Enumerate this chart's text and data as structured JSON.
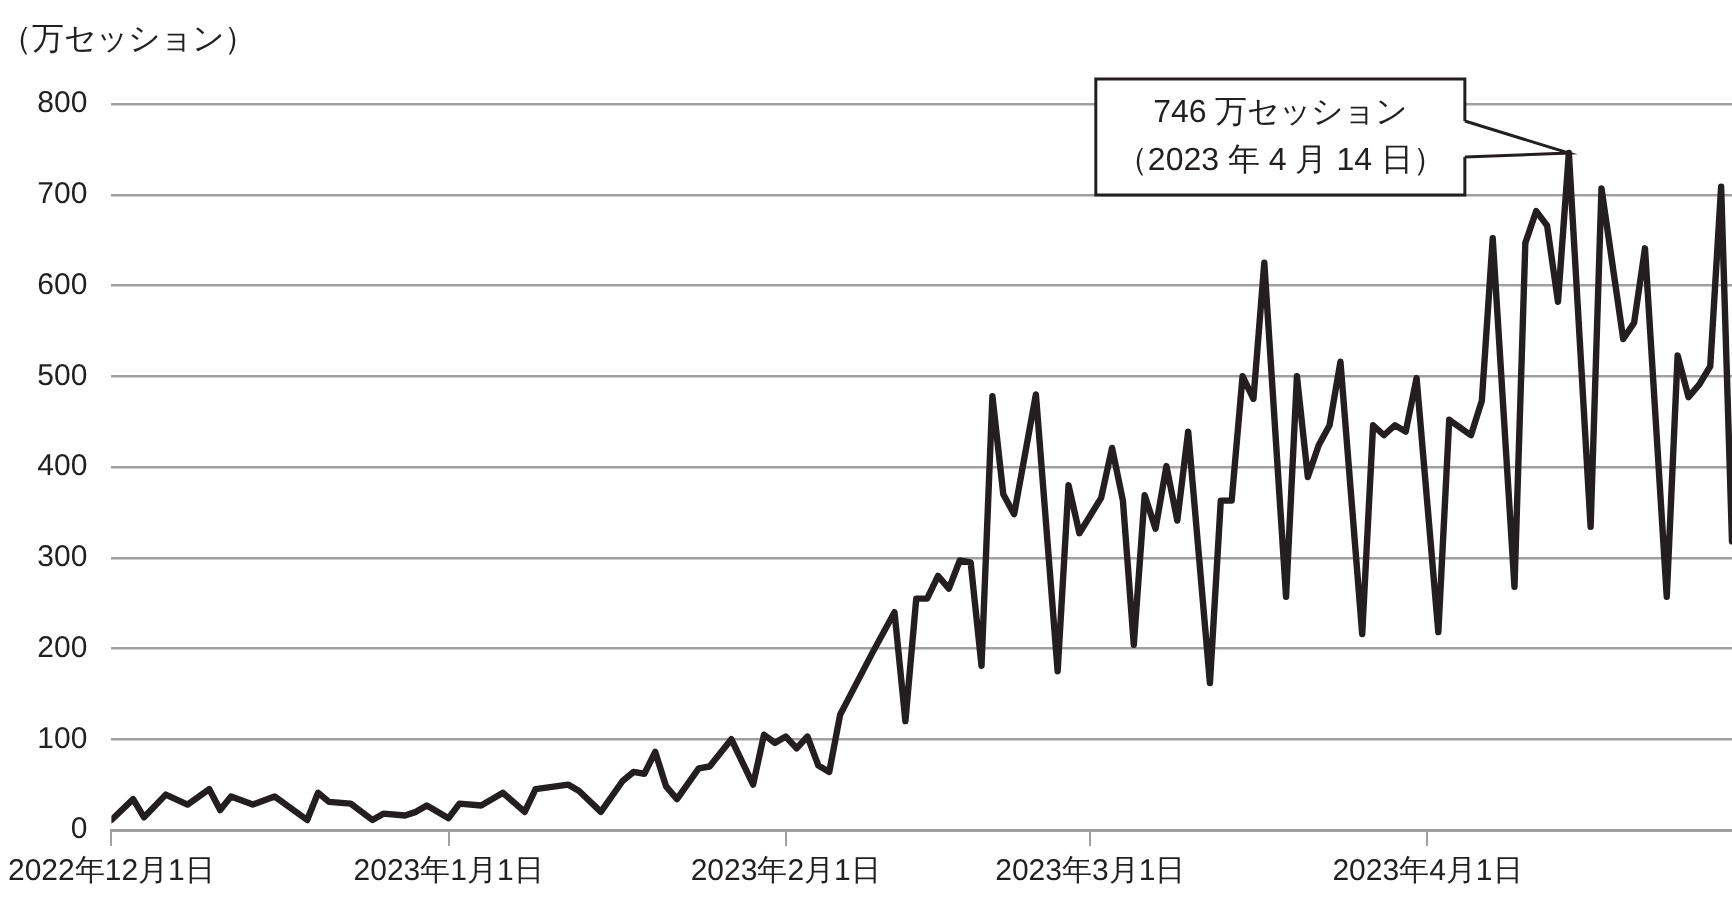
{
  "chart_data": {
    "type": "line",
    "ylabel": "（万セッション）",
    "color": "#231f20",
    "grid": "y",
    "legend": false,
    "marker": "none",
    "line_style": "solid",
    "x": [
      "2022-12-01",
      "2022-12-03",
      "2022-12-04",
      "2022-12-06",
      "2022-12-08",
      "2022-12-10",
      "2022-12-11",
      "2022-12-12",
      "2022-12-14",
      "2022-12-16",
      "2022-12-19",
      "2022-12-20",
      "2022-12-21",
      "2022-12-23",
      "2022-12-25",
      "2022-12-26",
      "2022-12-28",
      "2022-12-29",
      "2022-12-30",
      "2023-01-01",
      "2023-01-02",
      "2023-01-04",
      "2023-01-06",
      "2023-01-08",
      "2023-01-09",
      "2023-01-12",
      "2023-01-13",
      "2023-01-15",
      "2023-01-17",
      "2023-01-18",
      "2023-01-19",
      "2023-01-20",
      "2023-01-21",
      "2023-01-22",
      "2023-01-24",
      "2023-01-25",
      "2023-01-27",
      "2023-01-29",
      "2023-01-30",
      "2023-01-31",
      "2023-02-01",
      "2023-02-02",
      "2023-02-03",
      "2023-02-04",
      "2023-02-05",
      "2023-02-06",
      "2023-02-07",
      "2023-02-09",
      "2023-02-11",
      "2023-02-12",
      "2023-02-13",
      "2023-02-14",
      "2023-02-15",
      "2023-02-16",
      "2023-02-17",
      "2023-02-18",
      "2023-02-19",
      "2023-02-20",
      "2023-02-21",
      "2023-02-22",
      "2023-02-24",
      "2023-02-26",
      "2023-02-27",
      "2023-02-28",
      "2023-03-02",
      "2023-03-03",
      "2023-03-04",
      "2023-03-05",
      "2023-03-06",
      "2023-03-07",
      "2023-03-08",
      "2023-03-09",
      "2023-03-10",
      "2023-03-12",
      "2023-03-13",
      "2023-03-14",
      "2023-03-15",
      "2023-03-16",
      "2023-03-17",
      "2023-03-19",
      "2023-03-20",
      "2023-03-21",
      "2023-03-22",
      "2023-03-23",
      "2023-03-24",
      "2023-03-26",
      "2023-03-27",
      "2023-03-28",
      "2023-03-29",
      "2023-03-30",
      "2023-03-31",
      "2023-04-02",
      "2023-04-03",
      "2023-04-05",
      "2023-04-06",
      "2023-04-07",
      "2023-04-09",
      "2023-04-10",
      "2023-04-11",
      "2023-04-12",
      "2023-04-13",
      "2023-04-14",
      "2023-04-16",
      "2023-04-17",
      "2023-04-19",
      "2023-04-20",
      "2023-04-21",
      "2023-04-23",
      "2023-04-24",
      "2023-04-25",
      "2023-04-26",
      "2023-04-27",
      "2023-04-28",
      "2023-04-29"
    ],
    "values": [
      11,
      34,
      14,
      39,
      28,
      45,
      22,
      37,
      28,
      37,
      11,
      41,
      31,
      29,
      11,
      18,
      16,
      20,
      27,
      13,
      29,
      27,
      41,
      20,
      45,
      50,
      43,
      20,
      54,
      64,
      62,
      86,
      48,
      34,
      68,
      70,
      100,
      50,
      105,
      96,
      103,
      90,
      103,
      71,
      64,
      127,
      150,
      196,
      240,
      120,
      255,
      255,
      280,
      266,
      297,
      295,
      181,
      478,
      370,
      348,
      480,
      175,
      380,
      327,
      366,
      421,
      363,
      204,
      369,
      332,
      401,
      341,
      439,
      162,
      363,
      363,
      500,
      475,
      625,
      257,
      500,
      389,
      424,
      446,
      516,
      216,
      446,
      435,
      446,
      439,
      498,
      218,
      452,
      435,
      473,
      652,
      268,
      647,
      682,
      666,
      582,
      746,
      334,
      707,
      541,
      559,
      641,
      257,
      523,
      477,
      491,
      511,
      709,
      318
    ],
    "xlim": [
      "2022-12-01",
      "2023-04-29"
    ],
    "xticks": [
      {
        "value": "2022-12-01",
        "label": "2022年12月1日"
      },
      {
        "value": "2023-01-01",
        "label": "2023年1月1日"
      },
      {
        "value": "2023-02-01",
        "label": "2023年2月1日"
      },
      {
        "value": "2023-03-01",
        "label": "2023年3月1日"
      },
      {
        "value": "2023-04-01",
        "label": "2023年4月1日"
      }
    ],
    "ylim": [
      0,
      800
    ],
    "yticks": [
      0,
      100,
      200,
      300,
      400,
      500,
      600,
      700,
      800
    ],
    "annotations": [
      "746 万セッション",
      "（2023 年 4 月 14 日）"
    ]
  }
}
